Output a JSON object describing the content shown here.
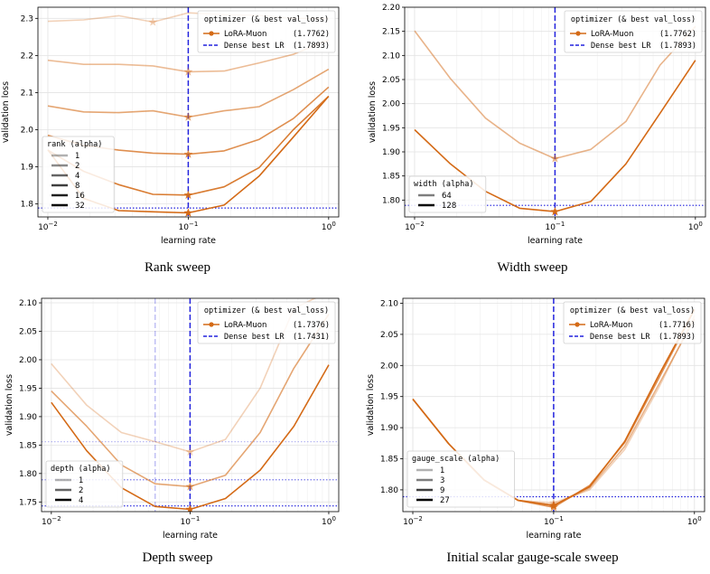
{
  "theme": {
    "orange": "#d46a16",
    "blue": "#2222dd",
    "grid": "#e3e3e3"
  },
  "common": {
    "xlabel": "learning rate",
    "ylabel": "validation loss",
    "legend_title": "optimizer (& best val_loss)",
    "optimizer_name": "LoRA-Muon",
    "dense_label": "Dense best LR",
    "x_ticks": [
      {
        "value": 0.01,
        "base": "10",
        "exp": "−2"
      },
      {
        "value": 0.1,
        "base": "10",
        "exp": "−1"
      },
      {
        "value": 1,
        "base": "10",
        "exp": "0"
      }
    ]
  },
  "captions": {
    "rank": "Rank sweep",
    "width": "Width sweep",
    "depth": "Depth sweep",
    "gauge": "Initial scalar gauge-scale sweep"
  },
  "chart_data": [
    {
      "id": "rank",
      "type": "line",
      "x_scale": "log",
      "xlim": [
        0.0085,
        1.18
      ],
      "ylim": [
        1.765,
        2.33
      ],
      "y_ticks": [
        1.8,
        1.9,
        2.0,
        2.1,
        2.2,
        2.3
      ],
      "y_decimals": 1,
      "x": [
        0.01,
        0.018,
        0.032,
        0.056,
        0.1,
        0.18,
        0.32,
        0.56,
        1.0
      ],
      "series": [
        {
          "name": "1",
          "opacity": 0.3,
          "values": [
            2.292,
            2.296,
            2.307,
            2.29,
            2.315,
            2.31,
            2.308,
            2.3,
            2.3
          ],
          "best": {
            "x": 0.056,
            "y": 2.29
          }
        },
        {
          "name": "2",
          "opacity": 0.45,
          "values": [
            2.187,
            2.176,
            2.176,
            2.172,
            2.156,
            2.158,
            2.18,
            2.203,
            2.242
          ],
          "best": {
            "x": 0.1,
            "y": 2.156
          }
        },
        {
          "name": "4",
          "opacity": 0.6,
          "values": [
            2.064,
            2.048,
            2.046,
            2.051,
            2.034,
            2.051,
            2.062,
            2.108,
            2.163
          ],
          "best": {
            "x": 0.1,
            "y": 2.034
          }
        },
        {
          "name": "8",
          "opacity": 0.75,
          "values": [
            1.985,
            1.958,
            1.945,
            1.937,
            1.934,
            1.943,
            1.974,
            2.03,
            2.115
          ],
          "best": {
            "x": 0.1,
            "y": 1.934
          }
        },
        {
          "name": "16",
          "opacity": 0.88,
          "values": [
            1.945,
            1.888,
            1.852,
            1.826,
            1.824,
            1.846,
            1.898,
            2.0,
            2.09
          ],
          "best": {
            "x": 0.1,
            "y": 1.824
          }
        },
        {
          "name": "32",
          "opacity": 1.0,
          "values": [
            1.946,
            1.815,
            1.782,
            1.779,
            1.776,
            1.797,
            1.875,
            1.98,
            2.09
          ],
          "best": {
            "x": 0.1,
            "y": 1.776
          }
        }
      ],
      "dense_best_lr": 0.1,
      "hlines": [
        {
          "y": 1.789,
          "opacity": 1.0
        }
      ],
      "legend_best": "(1.7762)",
      "legend_dense_value": "(1.7893)",
      "series_legend_title": "rank (alpha)"
    },
    {
      "id": "width",
      "type": "line",
      "x_scale": "log",
      "xlim": [
        0.0085,
        1.18
      ],
      "ylim": [
        1.765,
        2.2
      ],
      "y_ticks": [
        1.8,
        1.85,
        1.9,
        1.95,
        2.0,
        2.05,
        2.1,
        2.15,
        2.2
      ],
      "y_decimals": 2,
      "x": [
        0.01,
        0.018,
        0.032,
        0.056,
        0.1,
        0.18,
        0.32,
        0.56,
        1.0
      ],
      "series": [
        {
          "name": "64",
          "opacity": 0.5,
          "values": [
            2.151,
            2.052,
            1.97,
            1.918,
            1.886,
            1.905,
            1.963,
            2.08,
            2.16
          ],
          "best": {
            "x": 0.1,
            "y": 1.886
          }
        },
        {
          "name": "128",
          "opacity": 1.0,
          "values": [
            1.946,
            1.875,
            1.818,
            1.783,
            1.776,
            1.797,
            1.875,
            1.98,
            2.09
          ],
          "best": {
            "x": 0.1,
            "y": 1.776
          }
        }
      ],
      "dense_best_lr": 0.1,
      "hlines": [
        {
          "y": 1.789,
          "opacity": 1.0
        }
      ],
      "legend_best": "(1.7762)",
      "legend_dense_value": "(1.7893)",
      "series_legend_title": "width (alpha)"
    },
    {
      "id": "depth",
      "type": "line",
      "x_scale": "log",
      "xlim": [
        0.0085,
        1.18
      ],
      "ylim": [
        1.733,
        2.108
      ],
      "y_ticks": [
        1.75,
        1.8,
        1.85,
        1.9,
        1.95,
        2.0,
        2.05,
        2.1
      ],
      "y_decimals": 2,
      "x": [
        0.01,
        0.018,
        0.032,
        0.056,
        0.1,
        0.18,
        0.32,
        0.56,
        1.0
      ],
      "series": [
        {
          "name": "1",
          "opacity": 0.3,
          "values": [
            1.993,
            1.92,
            1.872,
            1.856,
            1.838,
            1.86,
            1.95,
            2.09,
            2.12
          ],
          "best": {
            "x": 0.1,
            "y": 1.838
          },
          "dense_lr": 0.056,
          "dense_opacity": 0.3
        },
        {
          "name": "2",
          "opacity": 0.6,
          "values": [
            1.945,
            1.883,
            1.815,
            1.782,
            1.777,
            1.797,
            1.872,
            1.985,
            2.08
          ],
          "best": {
            "x": 0.1,
            "y": 1.777
          },
          "dense_lr": 0.1,
          "dense_opacity": 0.6
        },
        {
          "name": "4",
          "opacity": 1.0,
          "values": [
            1.925,
            1.84,
            1.775,
            1.742,
            1.737,
            1.756,
            1.806,
            1.883,
            1.991
          ],
          "best": {
            "x": 0.1,
            "y": 1.737
          },
          "dense_lr": 0.1,
          "dense_opacity": 1.0
        }
      ],
      "dense_best_lr": 0.1,
      "hlines": [
        {
          "y": 1.856,
          "opacity": 0.3
        },
        {
          "y": 1.789,
          "opacity": 0.6
        },
        {
          "y": 1.743,
          "opacity": 1.0
        }
      ],
      "legend_best": "(1.7376)",
      "legend_dense_value": "(1.7431)",
      "series_legend_title": "depth (alpha)"
    },
    {
      "id": "gauge",
      "type": "line",
      "x_scale": "log",
      "xlim": [
        0.0085,
        1.18
      ],
      "ylim": [
        1.765,
        2.108
      ],
      "y_ticks": [
        1.8,
        1.85,
        1.9,
        1.95,
        2.0,
        2.05,
        2.1
      ],
      "y_decimals": 2,
      "x": [
        0.01,
        0.018,
        0.032,
        0.056,
        0.1,
        0.18,
        0.32,
        0.56,
        1.0
      ],
      "series": [
        {
          "name": "1",
          "opacity": 0.3,
          "values": [
            1.946,
            1.874,
            1.816,
            1.783,
            1.779,
            1.8,
            1.865,
            1.965,
            2.08
          ],
          "best": {
            "x": 0.1,
            "y": 1.779
          }
        },
        {
          "name": "3",
          "opacity": 0.5,
          "values": [
            1.946,
            1.874,
            1.816,
            1.783,
            1.775,
            1.803,
            1.87,
            1.97,
            2.075
          ],
          "best": {
            "x": 0.1,
            "y": 1.775
          }
        },
        {
          "name": "9",
          "opacity": 0.75,
          "values": [
            1.946,
            1.874,
            1.816,
            1.783,
            1.772,
            1.807,
            1.876,
            1.98,
            2.09
          ],
          "best": {
            "x": 0.1,
            "y": 1.772
          }
        },
        {
          "name": "27",
          "opacity": 1.0,
          "values": [
            1.946,
            1.874,
            1.816,
            1.783,
            1.775,
            1.805,
            1.878,
            1.985,
            2.09
          ],
          "best": {
            "x": 0.1,
            "y": 1.775
          }
        }
      ],
      "dense_best_lr": 0.1,
      "hlines": [
        {
          "y": 1.789,
          "opacity": 1.0
        }
      ],
      "legend_best": "(1.7716)",
      "legend_dense_value": "(1.7893)",
      "series_legend_title": "gauge_scale (alpha)"
    }
  ]
}
